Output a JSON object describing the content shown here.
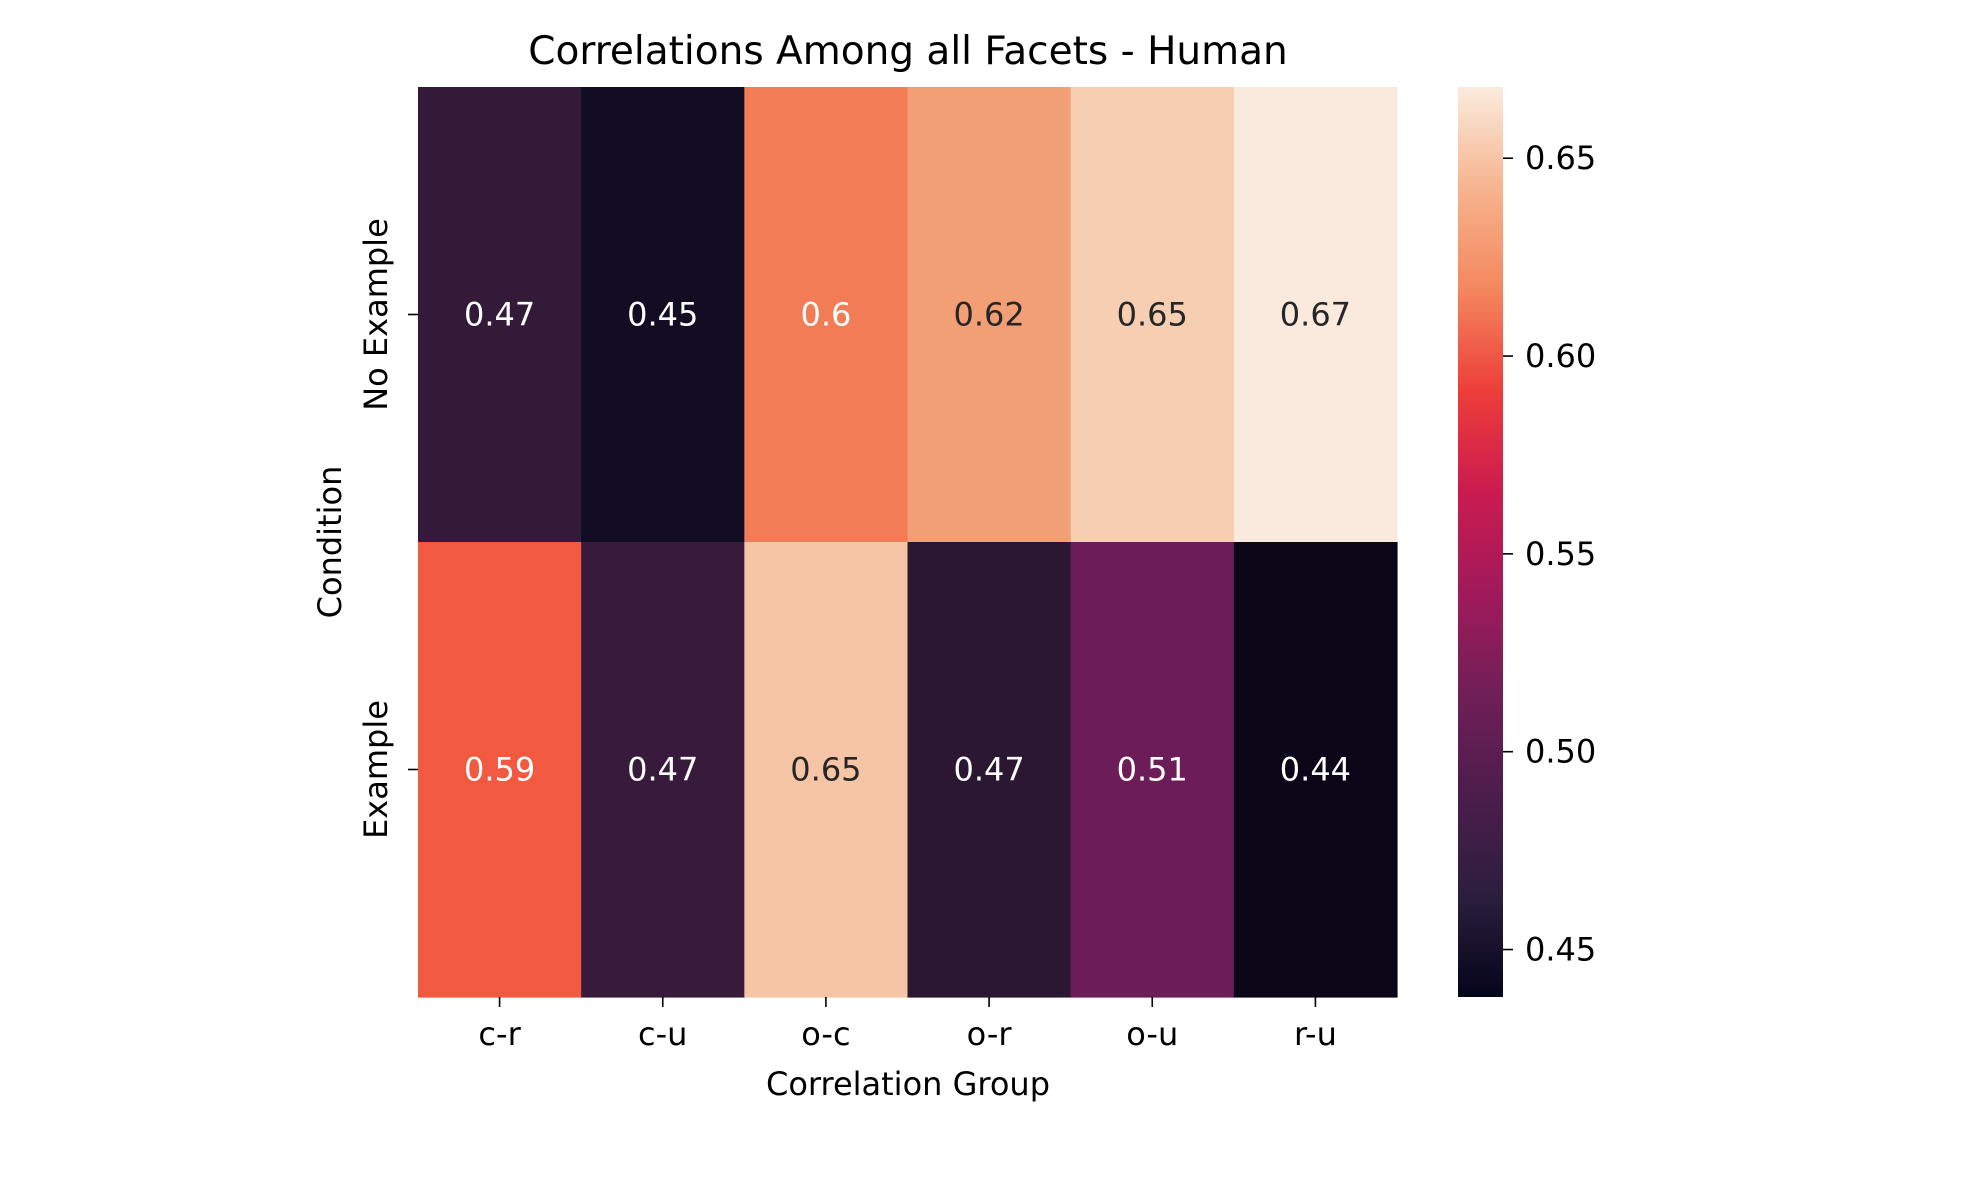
{
  "chart_data": {
    "type": "heatmap",
    "title": "Correlations Among all Facets - Human",
    "xlabel": "Correlation Group",
    "ylabel": "Condition",
    "x_categories": [
      "c-r",
      "c-u",
      "o-c",
      "o-r",
      "o-u",
      "r-u"
    ],
    "y_categories": [
      "No Example",
      "Example"
    ],
    "values": [
      [
        0.47,
        0.45,
        0.6,
        0.62,
        0.65,
        0.67
      ],
      [
        0.59,
        0.47,
        0.65,
        0.47,
        0.51,
        0.44
      ]
    ],
    "cell_colors": [
      [
        "#331a38",
        "#120d22",
        "#f27c55",
        "#f39f76",
        "#f6ceb1",
        "#faeade"
      ],
      [
        "#f15a40",
        "#381b3c",
        "#f5c5a5",
        "#2c1733",
        "#6c1c56",
        "#0b0719"
      ]
    ],
    "annotation_colors": [
      [
        "#ffffff",
        "#ffffff",
        "#ffffff",
        "#262626",
        "#262626",
        "#262626"
      ],
      [
        "#ffffff",
        "#ffffff",
        "#262626",
        "#ffffff",
        "#ffffff",
        "#ffffff"
      ]
    ],
    "colormap": "rocket",
    "colorbar": {
      "range": [
        0.438,
        0.668
      ],
      "ticks": [
        "0.45",
        "0.50",
        "0.55",
        "0.60",
        "0.65"
      ],
      "gradient_stops": [
        "#03051a",
        "#2c1e3e",
        "#4c1d4b",
        "#701f57",
        "#a11a5b",
        "#cb1b4f",
        "#ed3e3a",
        "#f4875e",
        "#f6b48e",
        "#faebdd"
      ]
    },
    "grid": false,
    "legend": "colorbar-right"
  }
}
